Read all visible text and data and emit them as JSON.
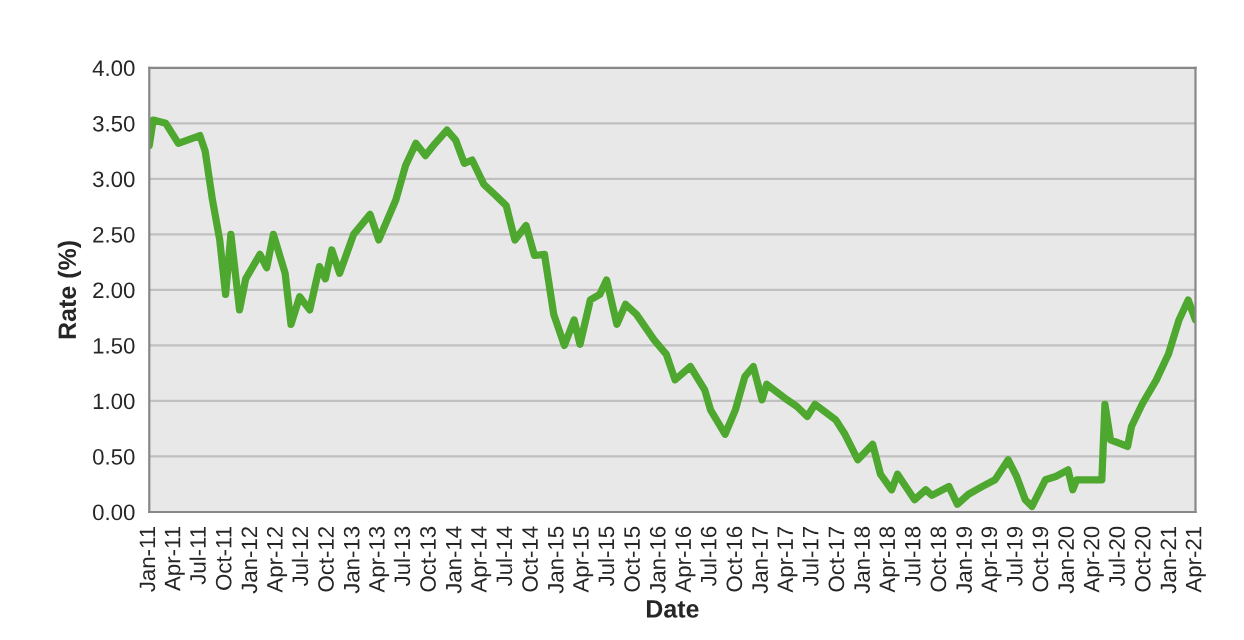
{
  "chart_data": {
    "type": "line",
    "xlabel": "Date",
    "ylabel": "Rate (%)",
    "x": [
      "2011-01-01",
      "2011-01-15",
      "2011-03-01",
      "2011-04-15",
      "2011-07-01",
      "2011-07-20",
      "2011-08-15",
      "2011-09-10",
      "2011-10-01",
      "2011-10-20",
      "2011-11-20",
      "2011-12-12",
      "2012-02-01",
      "2012-02-25",
      "2012-03-20",
      "2012-05-01",
      "2012-05-22",
      "2012-06-22",
      "2012-07-28",
      "2012-09-01",
      "2012-09-22",
      "2012-10-15",
      "2012-11-12",
      "2013-01-01",
      "2013-03-01",
      "2013-04-01",
      "2013-05-10",
      "2013-06-01",
      "2013-07-06",
      "2013-08-12",
      "2013-09-15",
      "2013-10-20",
      "2013-12-01",
      "2014-01-01",
      "2014-02-01",
      "2014-03-01",
      "2014-04-12",
      "2014-05-25",
      "2014-07-01",
      "2014-08-01",
      "2014-09-10",
      "2014-10-10",
      "2014-11-15",
      "2014-12-18",
      "2015-01-25",
      "2015-03-01",
      "2015-03-22",
      "2015-04-28",
      "2015-06-01",
      "2015-06-25",
      "2015-08-01",
      "2015-09-01",
      "2015-10-10",
      "2015-12-12",
      "2016-01-25",
      "2016-02-25",
      "2016-04-20",
      "2016-06-10",
      "2016-07-01",
      "2016-08-22",
      "2016-09-28",
      "2016-11-01",
      "2016-12-01",
      "2017-01-01",
      "2017-01-18",
      "2017-04-01",
      "2017-05-06",
      "2017-06-12",
      "2017-07-10",
      "2017-09-22",
      "2017-10-25",
      "2017-12-10",
      "2018-02-01",
      "2018-03-01",
      "2018-04-10",
      "2018-05-01",
      "2018-07-01",
      "2018-08-10",
      "2018-09-01",
      "2018-11-01",
      "2018-12-01",
      "2019-01-10",
      "2019-03-01",
      "2019-04-15",
      "2019-06-01",
      "2019-07-01",
      "2019-08-01",
      "2019-08-25",
      "2019-10-12",
      "2019-11-18",
      "2020-01-01",
      "2020-01-18",
      "2020-02-01",
      "2020-05-01",
      "2020-05-12",
      "2020-06-01",
      "2020-08-01",
      "2020-08-15",
      "2020-09-22",
      "2020-11-12",
      "2020-12-25",
      "2021-02-01",
      "2021-03-06",
      "2021-04-01"
    ],
    "series": [
      {
        "color": "#4ea72e",
        "values": [
          3.3,
          3.53,
          3.5,
          3.32,
          3.39,
          3.25,
          2.81,
          2.45,
          1.96,
          2.5,
          1.82,
          2.1,
          2.32,
          2.2,
          2.5,
          2.15,
          1.69,
          1.94,
          1.82,
          2.21,
          2.1,
          2.36,
          2.15,
          2.5,
          2.68,
          2.45,
          2.68,
          2.81,
          3.12,
          3.32,
          3.21,
          3.32,
          3.44,
          3.35,
          3.14,
          3.17,
          2.95,
          2.85,
          2.76,
          2.45,
          2.58,
          2.31,
          2.32,
          1.78,
          1.5,
          1.73,
          1.51,
          1.91,
          1.96,
          2.09,
          1.69,
          1.87,
          1.78,
          1.55,
          1.42,
          1.19,
          1.31,
          1.1,
          0.92,
          0.7,
          0.92,
          1.22,
          1.31,
          1.01,
          1.15,
          1.01,
          0.95,
          0.86,
          0.97,
          0.83,
          0.7,
          0.47,
          0.61,
          0.34,
          0.2,
          0.34,
          0.11,
          0.2,
          0.15,
          0.23,
          0.07,
          0.16,
          0.23,
          0.29,
          0.47,
          0.32,
          0.11,
          0.05,
          0.29,
          0.32,
          0.38,
          0.2,
          0.29,
          0.29,
          0.97,
          0.65,
          0.59,
          0.77,
          0.97,
          1.19,
          1.42,
          1.73,
          1.91,
          1.73
        ]
      }
    ],
    "xlim": [
      "2011-01-01",
      "2021-04-01"
    ],
    "xticks": [
      {
        "value": "2011-01-01",
        "label": "Jan-11"
      },
      {
        "value": "2011-04-01",
        "label": "Apr-11"
      },
      {
        "value": "2011-07-01",
        "label": "Jul-11"
      },
      {
        "value": "2011-10-01",
        "label": "Oct-11"
      },
      {
        "value": "2012-01-01",
        "label": "Jan-12"
      },
      {
        "value": "2012-04-01",
        "label": "Apr-12"
      },
      {
        "value": "2012-07-01",
        "label": "Jul-12"
      },
      {
        "value": "2012-10-01",
        "label": "Oct-12"
      },
      {
        "value": "2013-01-01",
        "label": "Jan-13"
      },
      {
        "value": "2013-04-01",
        "label": "Apr-13"
      },
      {
        "value": "2013-07-01",
        "label": "Jul-13"
      },
      {
        "value": "2013-10-01",
        "label": "Oct-13"
      },
      {
        "value": "2014-01-01",
        "label": "Jan-14"
      },
      {
        "value": "2014-04-01",
        "label": "Apr-14"
      },
      {
        "value": "2014-07-01",
        "label": "Jul-14"
      },
      {
        "value": "2014-10-01",
        "label": "Oct-14"
      },
      {
        "value": "2015-01-01",
        "label": "Jan-15"
      },
      {
        "value": "2015-04-01",
        "label": "Apr-15"
      },
      {
        "value": "2015-07-01",
        "label": "Jul-15"
      },
      {
        "value": "2015-10-01",
        "label": "Oct-15"
      },
      {
        "value": "2016-01-01",
        "label": "Jan-16"
      },
      {
        "value": "2016-04-01",
        "label": "Apr-16"
      },
      {
        "value": "2016-07-01",
        "label": "Jul-16"
      },
      {
        "value": "2016-10-01",
        "label": "Oct-16"
      },
      {
        "value": "2017-01-01",
        "label": "Jan-17"
      },
      {
        "value": "2017-04-01",
        "label": "Apr-17"
      },
      {
        "value": "2017-07-01",
        "label": "Jul-17"
      },
      {
        "value": "2017-10-01",
        "label": "Oct-17"
      },
      {
        "value": "2018-01-01",
        "label": "Jan-18"
      },
      {
        "value": "2018-04-01",
        "label": "Apr-18"
      },
      {
        "value": "2018-07-01",
        "label": "Jul-18"
      },
      {
        "value": "2018-10-01",
        "label": "Oct-18"
      },
      {
        "value": "2019-01-01",
        "label": "Jan-19"
      },
      {
        "value": "2019-04-01",
        "label": "Apr-19"
      },
      {
        "value": "2019-07-01",
        "label": "Jul-19"
      },
      {
        "value": "2019-10-01",
        "label": "Oct-19"
      },
      {
        "value": "2020-01-01",
        "label": "Jan-20"
      },
      {
        "value": "2020-04-01",
        "label": "Apr-20"
      },
      {
        "value": "2020-07-01",
        "label": "Jul-20"
      },
      {
        "value": "2020-10-01",
        "label": "Oct-20"
      },
      {
        "value": "2021-01-01",
        "label": "Jan-21"
      },
      {
        "value": "2021-04-01",
        "label": "Apr-21"
      }
    ],
    "ylim": [
      0,
      4
    ],
    "yticks": [
      {
        "value": 0,
        "label": "0.00"
      },
      {
        "value": 0.5,
        "label": "0.50"
      },
      {
        "value": 1,
        "label": "1.00"
      },
      {
        "value": 1.5,
        "label": "1.50"
      },
      {
        "value": 2,
        "label": "2.00"
      },
      {
        "value": 2.5,
        "label": "2.50"
      },
      {
        "value": 3,
        "label": "3.00"
      },
      {
        "value": 3.5,
        "label": "3.50"
      },
      {
        "value": 4,
        "label": "4.00"
      }
    ],
    "grid": "y",
    "marker": "none",
    "line_style": "solid"
  }
}
